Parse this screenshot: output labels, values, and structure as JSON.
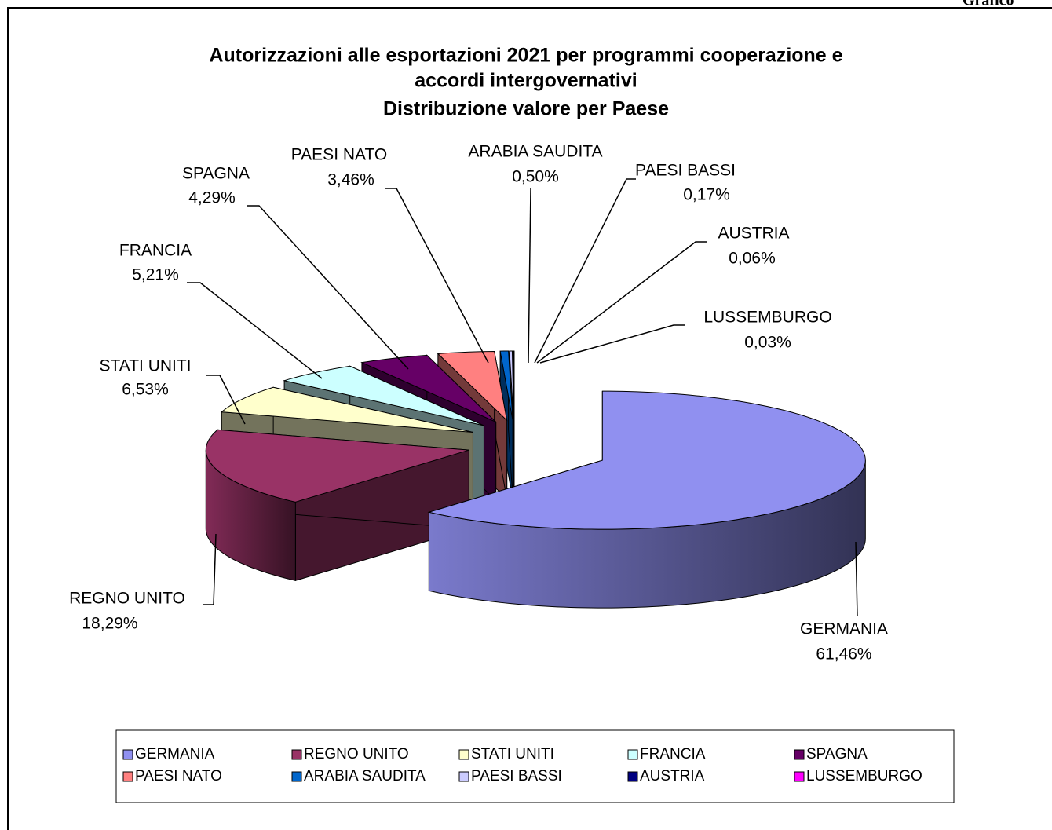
{
  "header": "Grafico",
  "chart_data": {
    "type": "pie3d",
    "title": [
      "Autorizzazioni alle esportazioni 2021 per programmi cooperazione e",
      "accordi intergovernativi",
      "Distribuzione valore per Paese"
    ],
    "categories": [
      "GERMANIA",
      "REGNO UNITO",
      "STATI UNITI",
      "FRANCIA",
      "SPAGNA",
      "PAESI NATO",
      "ARABIA SAUDITA",
      "PAESI BASSI",
      "AUSTRIA",
      "LUSSEMBURGO"
    ],
    "values": [
      61.46,
      18.29,
      6.53,
      5.21,
      4.29,
      3.46,
      0.5,
      0.17,
      0.06,
      0.03
    ],
    "value_labels": [
      "61,46%",
      "18,29%",
      "6,53%",
      "5,21%",
      "4,29%",
      "3,46%",
      "0,50%",
      "0,17%",
      "0,06%",
      "0,03%"
    ],
    "colors": [
      "#9090f0",
      "#993366",
      "#ffffcc",
      "#ccffff",
      "#660066",
      "#ff8080",
      "#0066cc",
      "#ccccff",
      "#000080",
      "#ff00ff"
    ],
    "legend": "bottom"
  }
}
